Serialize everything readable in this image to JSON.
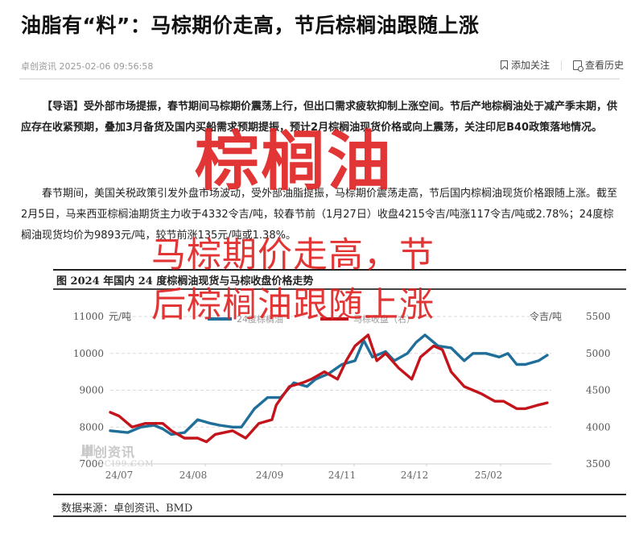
{
  "article": {
    "title": "油脂有“料”：马棕期价走高，节后棕榈油跟随上涨",
    "source_time": "卓创资讯 2025-02-06 09:56:58",
    "actions": [
      {
        "label": "添加关注",
        "icon": "bookmark-icon"
      },
      {
        "label": "查看历史",
        "icon": "history-icon"
      }
    ],
    "lead_label": "【导语】",
    "lead_text": "受外部市场提振，春节期间马棕期价震荡上行，但出口需求疲软抑制上涨空间。节后产地棕榈油处于减产季末期，供应存在收紧预期，叠加3月备货及国内买船需求预期提振，预计2月棕榈油现货价格或向上震荡，关注印尼B40政策落地情况。",
    "body_text": "春节期间，美国关税政策引发外盘市场波动，受外部油脂提振，马棕期价震荡走高，节后国内棕榈油现货价格跟随上涨。截至2月5日，马来西亚棕榈油期货主力收于4332令吉/吨，较春节前（1月27日）收盘4215令吉/吨涨117令吉/吨或2.78%；24度棕榈油现货均价为9893元/吨，较节前涨135元/吨或1.38%。"
  },
  "overlay": {
    "line1": "棕榈油",
    "line2": "马棕期价走高，节",
    "line3": "后棕榈油跟随上涨",
    "color": "#e02424"
  },
  "figure": {
    "title": "图  2024 年国内 24 度棕榈油现货与马棕收盘价格走势",
    "source": "数据来源：卓创资讯、BMD",
    "watermark": "卓创资讯",
    "watermark_sub": "SCI99.COM"
  },
  "chart_data": {
    "type": "line",
    "title": "2024 年国内 24 度棕榈油现货与马棕收盘价格走势",
    "x_ticks": [
      "24/07",
      "24/08",
      "24/09",
      "24/11",
      "24/12",
      "25/02"
    ],
    "left_axis": {
      "label": "元/吨",
      "ticks": [
        7000,
        8000,
        9000,
        10000,
        11000
      ],
      "range": [
        7000,
        11000
      ]
    },
    "right_axis": {
      "label": "令吉/吨",
      "ticks": [
        3500,
        4000,
        4500,
        5000,
        5500
      ],
      "range": [
        3500,
        5500
      ]
    },
    "grid": "dashed horizontal",
    "legend_position": "top",
    "series": [
      {
        "name": "24度棕榈油",
        "axis": "left",
        "color": "#1f6f9a",
        "x": [
          0.0,
          0.04,
          0.07,
          0.1,
          0.12,
          0.14,
          0.17,
          0.2,
          0.23,
          0.25,
          0.28,
          0.3,
          0.33,
          0.36,
          0.39,
          0.42,
          0.45,
          0.47,
          0.5,
          0.53,
          0.56,
          0.58,
          0.6,
          0.63,
          0.65,
          0.68,
          0.7,
          0.72,
          0.75,
          0.78,
          0.81,
          0.83,
          0.86,
          0.89,
          0.91,
          0.93,
          0.95,
          0.98,
          1.0
        ],
        "values": [
          7900,
          7850,
          8000,
          8050,
          7950,
          7800,
          7850,
          8200,
          8100,
          8050,
          8000,
          8000,
          8500,
          8800,
          8800,
          9200,
          9100,
          9300,
          9450,
          9700,
          9800,
          10350,
          9900,
          10050,
          9800,
          10000,
          10300,
          10500,
          10200,
          10150,
          9800,
          10000,
          10000,
          9900,
          10000,
          9700,
          9700,
          9800,
          9950
        ]
      },
      {
        "name": "马棕收盘（右）",
        "axis": "right",
        "color": "#c4141b",
        "x": [
          0.0,
          0.02,
          0.05,
          0.08,
          0.12,
          0.14,
          0.17,
          0.2,
          0.22,
          0.24,
          0.28,
          0.31,
          0.34,
          0.37,
          0.38,
          0.41,
          0.44,
          0.46,
          0.49,
          0.52,
          0.54,
          0.56,
          0.59,
          0.61,
          0.63,
          0.66,
          0.69,
          0.71,
          0.74,
          0.76,
          0.78,
          0.81,
          0.83,
          0.85,
          0.88,
          0.9,
          0.93,
          0.95,
          0.98,
          1.0
        ],
        "values": [
          4200,
          4150,
          4000,
          4050,
          4050,
          3950,
          3850,
          3850,
          3800,
          3900,
          3950,
          3850,
          4050,
          4100,
          4300,
          4550,
          4600,
          4650,
          4750,
          4650,
          4900,
          5100,
          5250,
          4900,
          5000,
          4800,
          4650,
          4950,
          5100,
          5050,
          4750,
          4550,
          4500,
          4450,
          4350,
          4350,
          4250,
          4250,
          4300,
          4330
        ]
      }
    ]
  }
}
